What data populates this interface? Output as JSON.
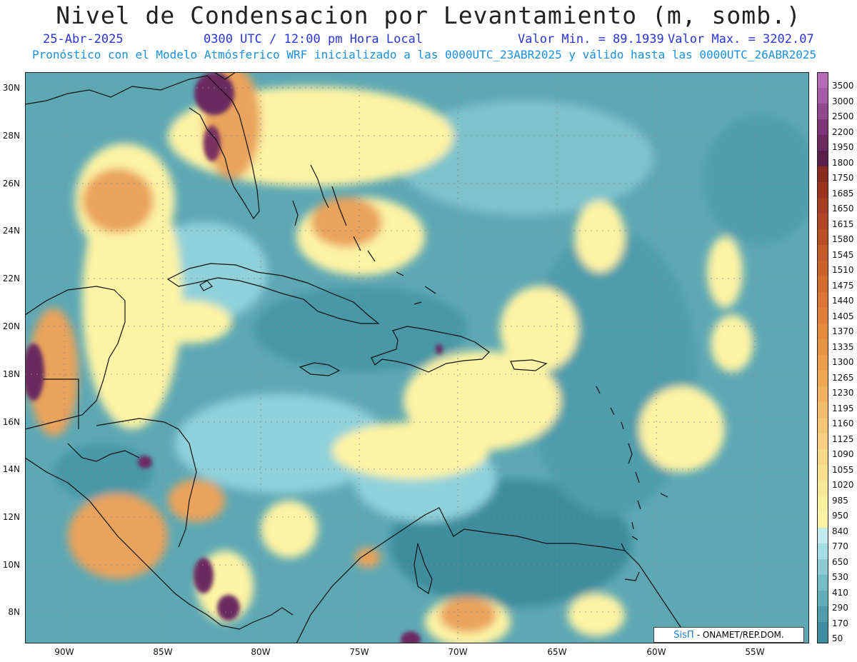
{
  "header": {
    "title": "Nivel de Condensacion por Levantamiento (m, somb.)",
    "date": "25-Abr-2025",
    "time": "0300 UTC / 12:00 pm Hora Local",
    "min_label": "Valor Min. = 89.1939",
    "max_label": "Valor Max. = 3202.07",
    "description": "Pronóstico con el Modelo Atmósferico WRF inicializado a las 0000UTC_23ABR2025 y válido hasta las  0000UTC_26ABR2025"
  },
  "lat_labels": [
    "30N",
    "28N",
    "26N",
    "24N",
    "22N",
    "20N",
    "18N",
    "16N",
    "14N",
    "12N",
    "10N",
    "8N"
  ],
  "lon_labels": [
    "90W",
    "85W",
    "80W",
    "75W",
    "70W",
    "65W",
    "60W",
    "55W"
  ],
  "legend": {
    "labels": [
      "3500",
      "3000",
      "2500",
      "2200",
      "1950",
      "1800",
      "1750",
      "1685",
      "1650",
      "1615",
      "1580",
      "1545",
      "1510",
      "1475",
      "1440",
      "1405",
      "1370",
      "1335",
      "1300",
      "1265",
      "1230",
      "1195",
      "1160",
      "1125",
      "1090",
      "1055",
      "1020",
      "985",
      "950",
      "840",
      "770",
      "650",
      "530",
      "410",
      "290",
      "170",
      "50"
    ]
  },
  "credit": {
    "sis": "SisΠ",
    "org": "- ONAMET/REP.DOM."
  },
  "colors": {
    "ocean_mid": "#5ea8b4",
    "ocean_dark": "#3d8d9c",
    "ocean_light": "#a6dde6",
    "yellow": "#fdf3a4",
    "orange": "#e9a35c",
    "purple": "#6b2a60",
    "coast": "#111111"
  }
}
